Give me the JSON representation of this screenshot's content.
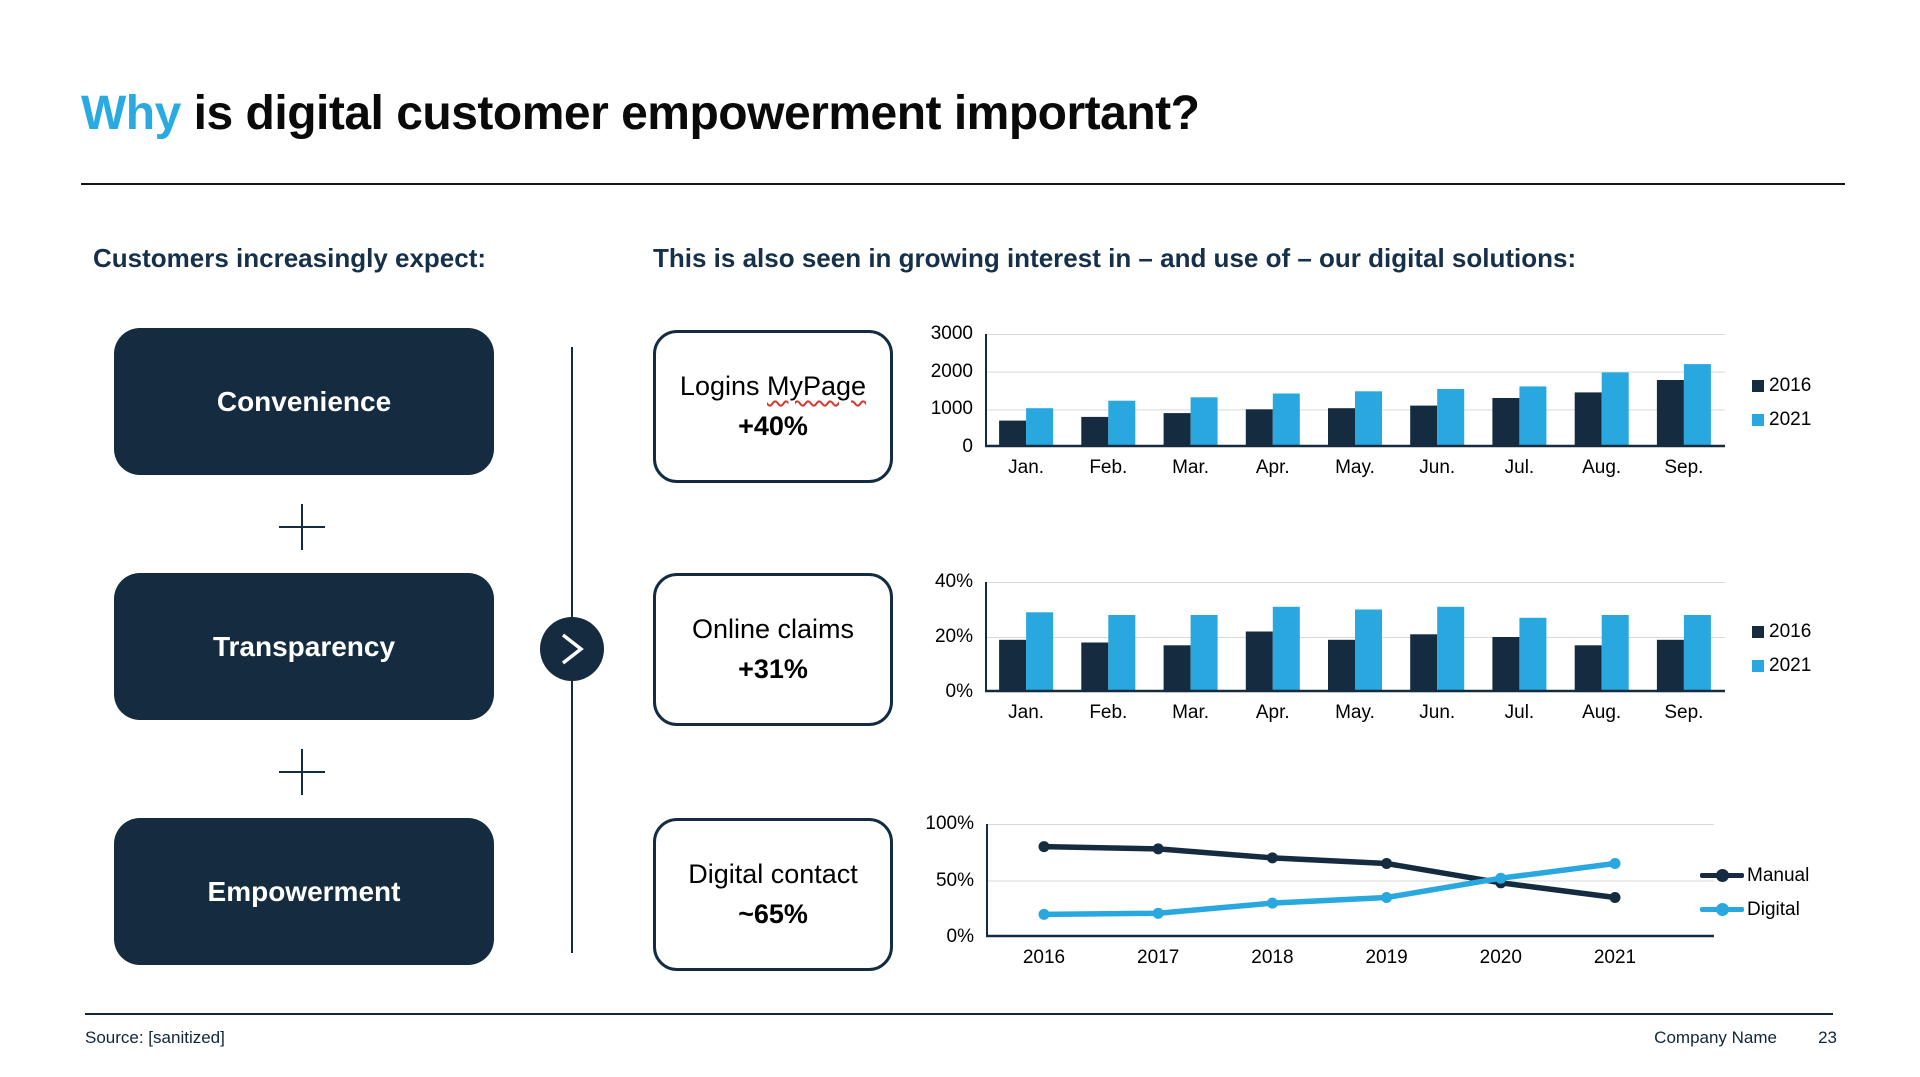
{
  "slide": {
    "title": {
      "highlight": "Why",
      "rest": " is digital customer empowerment important?"
    },
    "left_panel": {
      "heading": "Customers increasingly expect:",
      "boxes": [
        {
          "label": "Convenience"
        },
        {
          "label": "Transparency"
        },
        {
          "label": "Empowerment"
        }
      ]
    },
    "right_panel": {
      "heading": "This is also seen in growing interest in – and use of – our digital solutions:",
      "metric_boxes": [
        {
          "word1": "Logins",
          "word2": "MyPage",
          "metric": "+40%"
        },
        {
          "label": "Online claims",
          "metric": "+31%"
        },
        {
          "label": "Digital contact",
          "metric": "~65%"
        }
      ]
    },
    "footer": {
      "source": "Source: [sanitized]",
      "company": "Company Name",
      "page": "23"
    }
  },
  "colors": {
    "navy": "#142B40",
    "blue": "#29A8DF",
    "title_blue": "#29ABE2",
    "gridline": "#D9D9D9",
    "spellcheck_red": "#D43B2F"
  },
  "chart_data": [
    {
      "type": "bar",
      "title": "Logins MyPage +40%",
      "categories": [
        "Jan.",
        "Feb.",
        "Mar.",
        "Apr.",
        "May.",
        "Jun.",
        "Jul.",
        "Aug.",
        "Sep."
      ],
      "series": [
        {
          "name": "2016",
          "color": "#142B40",
          "values": [
            700,
            800,
            900,
            1000,
            1030,
            1100,
            1300,
            1450,
            1780
          ]
        },
        {
          "name": "2021",
          "color": "#29A8DF",
          "values": [
            1030,
            1230,
            1320,
            1420,
            1480,
            1540,
            1610,
            1980,
            2200
          ]
        }
      ],
      "ylim": [
        0,
        3000
      ],
      "y_ticks": [
        {
          "v": 0,
          "label": "0"
        },
        {
          "v": 1000,
          "label": "1000"
        },
        {
          "v": 2000,
          "label": "2000"
        },
        {
          "v": 3000,
          "label": "3000"
        }
      ],
      "xlabel": "",
      "ylabel": "",
      "grid": true,
      "legend_position": "right"
    },
    {
      "type": "bar",
      "title": "Online claims +31%",
      "categories": [
        "Jan.",
        "Feb.",
        "Mar.",
        "Apr.",
        "May.",
        "Jun.",
        "Jul.",
        "Aug.",
        "Sep."
      ],
      "series": [
        {
          "name": "2016",
          "color": "#142B40",
          "values": [
            19,
            18,
            17,
            22,
            19,
            21,
            20,
            17,
            19
          ]
        },
        {
          "name": "2021",
          "color": "#29A8DF",
          "values": [
            29,
            28,
            28,
            31,
            30,
            31,
            27,
            28,
            28
          ]
        }
      ],
      "ylim": [
        0,
        40
      ],
      "y_ticks": [
        {
          "v": 0,
          "label": "0%"
        },
        {
          "v": 20,
          "label": "20%"
        },
        {
          "v": 40,
          "label": "40%"
        }
      ],
      "unit": "%",
      "grid": true,
      "legend_position": "right"
    },
    {
      "type": "line",
      "title": "Digital contact ~65%",
      "x": [
        "2016",
        "2017",
        "2018",
        "2019",
        "2020",
        "2021"
      ],
      "series": [
        {
          "name": "Manual",
          "color": "#142B40",
          "values": [
            80,
            78,
            70,
            65,
            48,
            35
          ]
        },
        {
          "name": "Digital",
          "color": "#29A8DF",
          "values": [
            20,
            21,
            30,
            35,
            52,
            65
          ]
        }
      ],
      "ylim": [
        0,
        100
      ],
      "y_ticks": [
        {
          "v": 0,
          "label": "0%"
        },
        {
          "v": 50,
          "label": "50%"
        },
        {
          "v": 100,
          "label": "100%"
        }
      ],
      "unit": "%",
      "grid": true,
      "legend_position": "right"
    }
  ]
}
